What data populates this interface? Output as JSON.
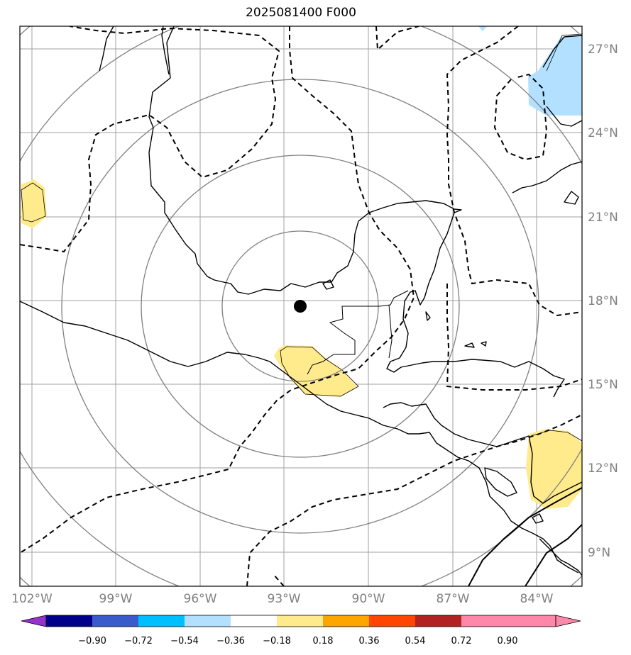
{
  "title": "2025081400 F000",
  "map": {
    "lat_labels": [
      "27°N",
      "24°N",
      "21°N",
      "18°N",
      "15°N",
      "12°N",
      "9°N"
    ],
    "lon_labels": [
      "102°W",
      "99°W",
      "96°W",
      "93°W",
      "90°W",
      "87°W",
      "84°W"
    ],
    "center_marker": {
      "lon": -92.3,
      "lat": 17.8
    },
    "colors": {
      "grid": "#a0a0a0",
      "range_rings": "#808080",
      "coast": "#000000",
      "contour": "#000000",
      "positive_fill": "#ffeb8c",
      "negative_fill": "#b3e0ff"
    }
  },
  "colorbar": {
    "labels": [
      "−0.90",
      "−0.72",
      "−0.54",
      "−0.36",
      "−0.18",
      "0.18",
      "0.36",
      "0.54",
      "0.72",
      "0.90"
    ],
    "colors": [
      "#9932cc",
      "#00008b",
      "#3a5bcc",
      "#00bfff",
      "#b3e0ff",
      "#ffffff",
      "#ffeb8c",
      "#ffa500",
      "#ff4500",
      "#b22222",
      "#ff88aa",
      "#ff88aa"
    ]
  }
}
